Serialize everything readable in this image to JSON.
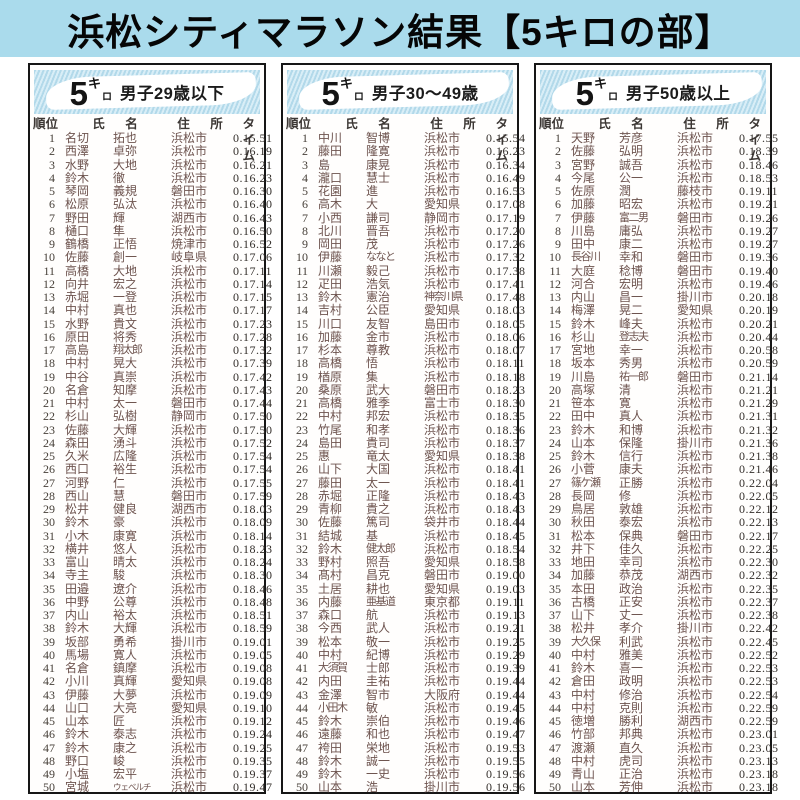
{
  "page_title": "浜松シティマラソン結果【5キロの部】",
  "colors": {
    "title_band_bg": "#aadbec",
    "banner_stripe_light": "#d9eef7",
    "banner_stripe_dark": "#b2d9ea",
    "name_ink": "#6d534e",
    "time_ink": "#332e2a",
    "border": "#161616"
  },
  "logo": {
    "big": "5",
    "sup": "キ",
    "sub": "ロ"
  },
  "table_headers": {
    "rank": "順位",
    "name": "氏　名",
    "address": "住　所",
    "time": "タイム"
  },
  "columns": [
    {
      "category": "男子29歳以下",
      "rows": [
        [
          "1",
          "名切",
          "拓也",
          "浜松市",
          "0.15.51"
        ],
        [
          "2",
          "西澤",
          "卓弥",
          "浜松市",
          "0.16.19"
        ],
        [
          "3",
          "水野",
          "大地",
          "浜松市",
          "0.16.21"
        ],
        [
          "4",
          "鈴木",
          "徹",
          "浜松市",
          "0.16.23"
        ],
        [
          "5",
          "琴岡",
          "義規",
          "磐田市",
          "0.16.30"
        ],
        [
          "6",
          "松原",
          "弘汰",
          "浜松市",
          "0.16.40"
        ],
        [
          "7",
          "野田",
          "輝",
          "湖西市",
          "0.16.43"
        ],
        [
          "8",
          "樋口",
          "隼",
          "浜松市",
          "0.16.50"
        ],
        [
          "9",
          "鶴橋",
          "正悟",
          "焼津市",
          "0.16.52"
        ],
        [
          "10",
          "佐藤",
          "創一",
          "岐阜県",
          "0.17.06"
        ],
        [
          "11",
          "高橋",
          "大地",
          "浜松市",
          "0.17.11"
        ],
        [
          "12",
          "向井",
          "宏之",
          "浜松市",
          "0.17.14"
        ],
        [
          "13",
          "赤堀",
          "一登",
          "浜松市",
          "0.17.15"
        ],
        [
          "14",
          "中村",
          "真也",
          "浜松市",
          "0.17.17"
        ],
        [
          "15",
          "水野",
          "貴文",
          "浜松市",
          "0.17.23"
        ],
        [
          "16",
          "原田",
          "将秀",
          "浜松市",
          "0.17.28"
        ],
        [
          "17",
          "高島",
          "翔太郎",
          "浜松市",
          "0.17.32"
        ],
        [
          "18",
          "中村",
          "晃大",
          "浜松市",
          "0.17.39"
        ],
        [
          "19",
          "中谷",
          "真崇",
          "浜松市",
          "0.17.42"
        ],
        [
          "20",
          "名倉",
          "知摩",
          "浜松市",
          "0.17.43"
        ],
        [
          "21",
          "中村",
          "太一",
          "磐田市",
          "0.17.44"
        ],
        [
          "22",
          "杉山",
          "弘樹",
          "静岡市",
          "0.17.50"
        ],
        [
          "23",
          "佐藤",
          "大輝",
          "浜松市",
          "0.17.50"
        ],
        [
          "24",
          "森田",
          "湧斗",
          "浜松市",
          "0.17.52"
        ],
        [
          "25",
          "久米",
          "広隆",
          "浜松市",
          "0.17.54"
        ],
        [
          "26",
          "西口",
          "裕生",
          "浜松市",
          "0.17.54"
        ],
        [
          "27",
          "河野",
          "仁",
          "浜松市",
          "0.17.55"
        ],
        [
          "28",
          "西山",
          "慧",
          "磐田市",
          "0.17.59"
        ],
        [
          "29",
          "松井",
          "健良",
          "湖西市",
          "0.18.03"
        ],
        [
          "30",
          "鈴木",
          "豪",
          "浜松市",
          "0.18.09"
        ],
        [
          "31",
          "小木",
          "康寛",
          "浜松市",
          "0.18.14"
        ],
        [
          "32",
          "横井",
          "悠人",
          "浜松市",
          "0.18.23"
        ],
        [
          "33",
          "富山",
          "晴太",
          "浜松市",
          "0.18.24"
        ],
        [
          "34",
          "寺主",
          "駿",
          "浜松市",
          "0.18.30"
        ],
        [
          "35",
          "田邉",
          "遼介",
          "浜松市",
          "0.18.46"
        ],
        [
          "36",
          "中野",
          "公尊",
          "浜松市",
          "0.18.48"
        ],
        [
          "37",
          "内山",
          "裕太",
          "浜松市",
          "0.18.51"
        ],
        [
          "38",
          "鈴木",
          "大輝",
          "浜松市",
          "0.18.59"
        ],
        [
          "39",
          "坂部",
          "勇希",
          "掛川市",
          "0.19.01"
        ],
        [
          "40",
          "馬場",
          "寛人",
          "浜松市",
          "0.19.05"
        ],
        [
          "41",
          "名倉",
          "鎮摩",
          "浜松市",
          "0.19.08"
        ],
        [
          "42",
          "小川",
          "真輝",
          "愛知県",
          "0.19.08"
        ],
        [
          "43",
          "伊藤",
          "大夢",
          "浜松市",
          "0.19.09"
        ],
        [
          "44",
          "山口",
          "大亮",
          "愛知県",
          "0.19.10"
        ],
        [
          "45",
          "山本",
          "匠",
          "浜松市",
          "0.19.12"
        ],
        [
          "46",
          "鈴木",
          "泰志",
          "浜松市",
          "0.19.24"
        ],
        [
          "47",
          "鈴木",
          "康之",
          "浜松市",
          "0.19.25"
        ],
        [
          "48",
          "野口",
          "峻",
          "浜松市",
          "0.19.35"
        ],
        [
          "49",
          "小塩",
          "宏平",
          "浜松市",
          "0.19.37"
        ],
        [
          "50",
          "宮城",
          "ウェベルチ",
          "浜松市",
          "0.19.47"
        ]
      ]
    },
    {
      "category": "男子30～49歳",
      "rows": [
        [
          "1",
          "中川",
          "智博",
          "浜松市",
          "0.15.54"
        ],
        [
          "2",
          "藤田",
          "隆寛",
          "浜松市",
          "0.16.23"
        ],
        [
          "3",
          "島",
          "康晃",
          "浜松市",
          "0.16.34"
        ],
        [
          "4",
          "瀧口",
          "慧士",
          "浜松市",
          "0.16.49"
        ],
        [
          "5",
          "花園",
          "進",
          "浜松市",
          "0.16.53"
        ],
        [
          "6",
          "高木",
          "大",
          "愛知県",
          "0.17.08"
        ],
        [
          "7",
          "小西",
          "謙司",
          "静岡市",
          "0.17.19"
        ],
        [
          "8",
          "北川",
          "晋吾",
          "浜松市",
          "0.17.20"
        ],
        [
          "9",
          "岡田",
          "茂",
          "浜松市",
          "0.17.26"
        ],
        [
          "10",
          "伊藤",
          "ななと",
          "浜松市",
          "0.17.32"
        ],
        [
          "11",
          "川瀬",
          "毅己",
          "浜松市",
          "0.17.38"
        ],
        [
          "12",
          "疋田",
          "浩気",
          "浜松市",
          "0.17.41"
        ],
        [
          "13",
          "鈴木",
          "憲治",
          "神奈川県",
          "0.17.48"
        ],
        [
          "14",
          "吉村",
          "公臣",
          "愛知県",
          "0.18.03"
        ],
        [
          "15",
          "川口",
          "友智",
          "島田市",
          "0.18.05"
        ],
        [
          "16",
          "加藤",
          "金市",
          "浜松市",
          "0.18.06"
        ],
        [
          "17",
          "杉本",
          "尊教",
          "浜松市",
          "0.18.07"
        ],
        [
          "18",
          "高橋",
          "悟",
          "浜松市",
          "0.18.11"
        ],
        [
          "19",
          "楢原",
          "集",
          "浜松市",
          "0.18.18"
        ],
        [
          "20",
          "桑原",
          "武大",
          "磐田市",
          "0.18.23"
        ],
        [
          "21",
          "高橋",
          "雅季",
          "富士市",
          "0.18.30"
        ],
        [
          "22",
          "中村",
          "邦宏",
          "浜松市",
          "0.18.35"
        ],
        [
          "23",
          "竹尾",
          "和孝",
          "浜松市",
          "0.18.36"
        ],
        [
          "24",
          "島田",
          "貴司",
          "浜松市",
          "0.18.37"
        ],
        [
          "25",
          "惠",
          "竜太",
          "愛知県",
          "0.18.38"
        ],
        [
          "26",
          "山下",
          "大国",
          "浜松市",
          "0.18.41"
        ],
        [
          "27",
          "藤田",
          "太一",
          "浜松市",
          "0.18.41"
        ],
        [
          "28",
          "赤堀",
          "正隆",
          "浜松市",
          "0.18.43"
        ],
        [
          "29",
          "青柳",
          "貴之",
          "浜松市",
          "0.18.43"
        ],
        [
          "30",
          "佐藤",
          "篤司",
          "袋井市",
          "0.18.44"
        ],
        [
          "31",
          "結城",
          "基",
          "浜松市",
          "0.18.45"
        ],
        [
          "32",
          "鈴木",
          "健太郎",
          "浜松市",
          "0.18.54"
        ],
        [
          "33",
          "野村",
          "照吾",
          "愛知県",
          "0.18.58"
        ],
        [
          "34",
          "髙村",
          "昌克",
          "磐田市",
          "0.19.00"
        ],
        [
          "35",
          "土居",
          "耕也",
          "愛知県",
          "0.19.03"
        ],
        [
          "36",
          "内藤",
          "亜基道",
          "東京都",
          "0.19.11"
        ],
        [
          "37",
          "森口",
          "航",
          "浜松市",
          "0.19.13"
        ],
        [
          "38",
          "今西",
          "武人",
          "浜松市",
          "0.19.21"
        ],
        [
          "39",
          "松本",
          "敬一",
          "浜松市",
          "0.19.25"
        ],
        [
          "40",
          "中村",
          "紀博",
          "浜松市",
          "0.19.29"
        ],
        [
          "41",
          "大須賀",
          "士郎",
          "浜松市",
          "0.19.39"
        ],
        [
          "42",
          "内田",
          "圭祐",
          "浜松市",
          "0.19.44"
        ],
        [
          "43",
          "金澤",
          "智市",
          "大阪府",
          "0.19.44"
        ],
        [
          "44",
          "小田木",
          "敏",
          "浜松市",
          "0.19.45"
        ],
        [
          "45",
          "鈴木",
          "崇伯",
          "浜松市",
          "0.19.46"
        ],
        [
          "46",
          "遠藤",
          "和也",
          "浜松市",
          "0.19.47"
        ],
        [
          "47",
          "袴田",
          "栄地",
          "浜松市",
          "0.19.53"
        ],
        [
          "48",
          "鈴木",
          "誠一",
          "浜松市",
          "0.19.55"
        ],
        [
          "49",
          "鈴木",
          "一史",
          "浜松市",
          "0.19.56"
        ],
        [
          "50",
          "山本",
          "浩",
          "掛川市",
          "0.19.56"
        ]
      ]
    },
    {
      "category": "男子50歳以上",
      "rows": [
        [
          "1",
          "天野",
          "芳彦",
          "浜松市",
          "0.17.55"
        ],
        [
          "2",
          "佐藤",
          "弘明",
          "浜松市",
          "0.18.39"
        ],
        [
          "3",
          "宮野",
          "誠吾",
          "浜松市",
          "0.18.46"
        ],
        [
          "4",
          "今尾",
          "公一",
          "浜松市",
          "0.18.53"
        ],
        [
          "5",
          "佐原",
          "潤",
          "藤枝市",
          "0.19.11"
        ],
        [
          "6",
          "加藤",
          "昭宏",
          "浜松市",
          "0.19.21"
        ],
        [
          "7",
          "伊藤",
          "富二男",
          "磐田市",
          "0.19.26"
        ],
        [
          "8",
          "川島",
          "庸弘",
          "浜松市",
          "0.19.27"
        ],
        [
          "9",
          "田中",
          "康二",
          "浜松市",
          "0.19.27"
        ],
        [
          "10",
          "長谷川",
          "幸和",
          "磐田市",
          "0.19.36"
        ],
        [
          "11",
          "大庭",
          "稔博",
          "磐田市",
          "0.19.40"
        ],
        [
          "12",
          "河合",
          "宏明",
          "浜松市",
          "0.19.46"
        ],
        [
          "13",
          "内山",
          "昌一",
          "掛川市",
          "0.20.18"
        ],
        [
          "14",
          "梅澤",
          "晃二",
          "愛知県",
          "0.20.19"
        ],
        [
          "15",
          "鈴木",
          "峰夫",
          "浜松市",
          "0.20.21"
        ],
        [
          "16",
          "杉山",
          "登志夫",
          "浜松市",
          "0.20.44"
        ],
        [
          "17",
          "宮地",
          "幸一",
          "浜松市",
          "0.20.58"
        ],
        [
          "18",
          "坂本",
          "秀男",
          "浜松市",
          "0.20.59"
        ],
        [
          "19",
          "川島",
          "祐一郎",
          "磐田市",
          "0.21.14"
        ],
        [
          "20",
          "高塚",
          "清",
          "浜松市",
          "0.21.21"
        ],
        [
          "21",
          "笹本",
          "寛",
          "浜松市",
          "0.21.29"
        ],
        [
          "22",
          "田中",
          "真人",
          "浜松市",
          "0.21.31"
        ],
        [
          "23",
          "鈴木",
          "和博",
          "浜松市",
          "0.21.32"
        ],
        [
          "24",
          "山本",
          "保隆",
          "掛川市",
          "0.21.36"
        ],
        [
          "25",
          "鈴木",
          "信行",
          "浜松市",
          "0.21.38"
        ],
        [
          "26",
          "小菅",
          "康夫",
          "浜松市",
          "0.21.46"
        ],
        [
          "27",
          "篠ケ瀬",
          "正勝",
          "浜松市",
          "0.22.04"
        ],
        [
          "28",
          "長岡",
          "修",
          "浜松市",
          "0.22.05"
        ],
        [
          "29",
          "鳥居",
          "敦雄",
          "浜松市",
          "0.22.12"
        ],
        [
          "30",
          "秋田",
          "泰宏",
          "浜松市",
          "0.22.13"
        ],
        [
          "31",
          "松本",
          "保典",
          "磐田市",
          "0.22.17"
        ],
        [
          "32",
          "井下",
          "佳久",
          "浜松市",
          "0.22.25"
        ],
        [
          "33",
          "地田",
          "幸司",
          "浜松市",
          "0.22.30"
        ],
        [
          "34",
          "加藤",
          "恭茂",
          "湖西市",
          "0.22.32"
        ],
        [
          "35",
          "本田",
          "政治",
          "浜松市",
          "0.22.35"
        ],
        [
          "36",
          "古橋",
          "正安",
          "浜松市",
          "0.22.37"
        ],
        [
          "37",
          "山下",
          "丈一",
          "浜松市",
          "0.22.38"
        ],
        [
          "38",
          "松井",
          "孝介",
          "掛川市",
          "0.22.42"
        ],
        [
          "39",
          "大久保",
          "利武",
          "浜松市",
          "0.22.45"
        ],
        [
          "40",
          "中村",
          "雅美",
          "浜松市",
          "0.22.52"
        ],
        [
          "41",
          "鈴木",
          "喜一",
          "浜松市",
          "0.22.53"
        ],
        [
          "42",
          "倉田",
          "政明",
          "浜松市",
          "0.22.53"
        ],
        [
          "43",
          "中村",
          "修治",
          "浜松市",
          "0.22.54"
        ],
        [
          "44",
          "中村",
          "克則",
          "浜松市",
          "0.22.59"
        ],
        [
          "45",
          "徳増",
          "勝利",
          "湖西市",
          "0.22.59"
        ],
        [
          "46",
          "竹部",
          "邦典",
          "浜松市",
          "0.23.01"
        ],
        [
          "47",
          "渡瀬",
          "直久",
          "浜松市",
          "0.23.05"
        ],
        [
          "48",
          "中村",
          "虎司",
          "浜松市",
          "0.23.13"
        ],
        [
          "49",
          "青山",
          "正治",
          "浜松市",
          "0.23.18"
        ],
        [
          "50",
          "山本",
          "芳伸",
          "浜松市",
          "0.23.18"
        ]
      ]
    }
  ]
}
